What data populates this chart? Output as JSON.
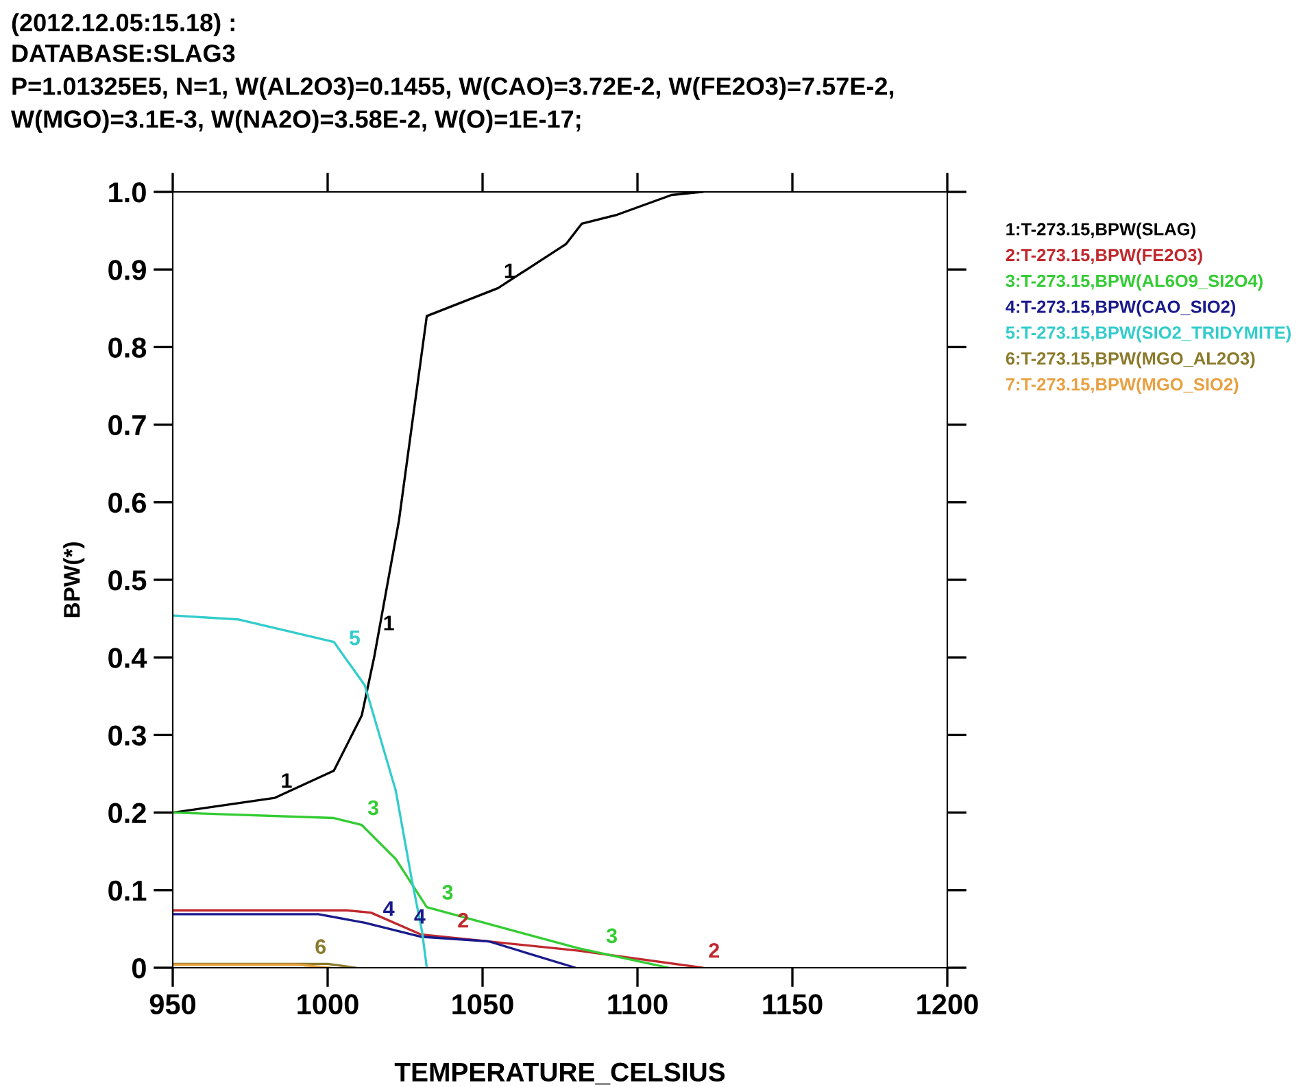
{
  "chart_data": {
    "type": "line",
    "title": "(2012.12.05:15.18) :",
    "subtitle": "DATABASE:SLAG3\nP=1.01325E5, N=1, W(AL2O3)=0.1455, W(CAO)=3.72E-2, W(FE2O3)=7.57E-2,\nW(MGO)=3.1E-3, W(NA2O)=3.58E-2, W(O)=1E-17;",
    "xlabel": "TEMPERATURE_CELSIUS",
    "ylabel": "BPW(*)",
    "xlim": [
      950,
      1200
    ],
    "xticks": [
      950,
      1000,
      1050,
      1100,
      1150,
      1200
    ],
    "ylim": [
      0,
      1.0
    ],
    "yticks": [
      0,
      0.1,
      0.2,
      0.3,
      0.4,
      0.5,
      0.6,
      0.7,
      0.8,
      0.9,
      {
        "value": 1.0,
        "label": "1.0"
      }
    ],
    "grid": false,
    "legend": "right",
    "marker": "none",
    "line_style": "solid",
    "series": [
      {
        "name": "1:T-273.15,BPW(SLAG)",
        "color": "#000000",
        "x": [
          950,
          983,
          1002,
          1011,
          1015,
          1023,
          1032,
          1055,
          1077,
          1082,
          1093,
          1111,
          1121
        ],
        "values": [
          0.2,
          0.219,
          0.254,
          0.325,
          0.4,
          0.576,
          0.84,
          0.876,
          0.933,
          0.959,
          0.97,
          0.996,
          1.0
        ]
      },
      {
        "name": "2:T-273.15,BPW(FE2O3)",
        "color": "#c0282d",
        "x": [
          950,
          1006,
          1014,
          1030,
          1081,
          1121
        ],
        "values": [
          0.074,
          0.074,
          0.071,
          0.043,
          0.022,
          0
        ]
      },
      {
        "name": "3:T-273.15,BPW(AL6O9_SI2O4)",
        "color": "#33cc33",
        "x": [
          950,
          1002,
          1011,
          1022,
          1032,
          1081,
          1110
        ],
        "values": [
          0.2,
          0.193,
          0.184,
          0.14,
          0.078,
          0.025,
          0
        ]
      },
      {
        "name": "4:T-273.15,BPW(CAO_SIO2)",
        "color": "#1a1a8c",
        "x": [
          950,
          997,
          1012,
          1030,
          1052,
          1080
        ],
        "values": [
          0.069,
          0.069,
          0.058,
          0.04,
          0.034,
          0
        ]
      },
      {
        "name": "5:T-273.15,BPW(SIO2_TRIDYMITE)",
        "color": "#33cccc",
        "x": [
          950,
          971,
          1002,
          1012,
          1022,
          1027,
          1030.5,
          1032
        ],
        "values": [
          0.454,
          0.449,
          0.42,
          0.364,
          0.228,
          0.117,
          0.046,
          0
        ]
      },
      {
        "name": "6:T-273.15,BPW(MGO_AL2O3)",
        "color": "#8b7a2b",
        "x": [
          950,
          1000,
          1009
        ],
        "values": [
          0.005,
          0.005,
          0
        ]
      },
      {
        "name": "7:T-273.15,BPW(MGO_SIO2)",
        "color": "#e8a040",
        "x": [
          950,
          990,
          1001
        ],
        "values": [
          0.004,
          0.004,
          0
        ]
      }
    ],
    "annotations": [
      {
        "text": "1",
        "x": 983,
        "y": 0.219
      },
      {
        "text": "1",
        "x": 1055,
        "y": 0.876
      },
      {
        "text": "1",
        "x": 1016,
        "y": 0.422
      },
      {
        "text": "2",
        "x": 1040,
        "y": 0.039
      },
      {
        "text": "2",
        "x": 1121,
        "y": 0
      },
      {
        "text": "3",
        "x": 1011,
        "y": 0.184
      },
      {
        "text": "3",
        "x": 1035,
        "y": 0.075
      },
      {
        "text": "3",
        "x": 1088,
        "y": 0.019
      },
      {
        "text": "4",
        "x": 1016,
        "y": 0.054
      },
      {
        "text": "4",
        "x": 1026,
        "y": 0.044
      },
      {
        "text": "5",
        "x": 1005,
        "y": 0.403
      },
      {
        "text": "6",
        "x": 994,
        "y": 0.005
      }
    ]
  }
}
